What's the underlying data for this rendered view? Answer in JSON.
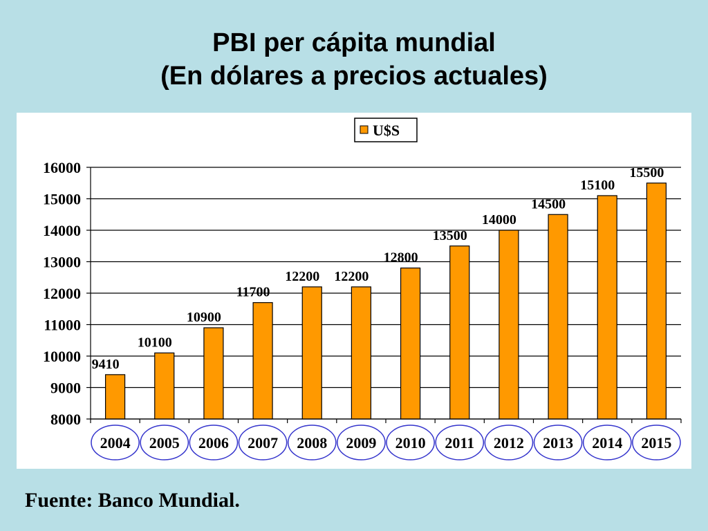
{
  "slide": {
    "title_line1": "PBI per cápita mundial",
    "title_line2": "(En dólares a precios actuales)",
    "source": "Fuente: Banco Mundial."
  },
  "colors": {
    "background": "#b8dfe6",
    "bar": "#ff9900",
    "highlight_ellipse": "#3333cc"
  },
  "chart_data": {
    "type": "bar",
    "categories": [
      "2004",
      "2005",
      "2006",
      "2007",
      "2008",
      "2009",
      "2010",
      "2011",
      "2012",
      "2013",
      "2014",
      "2015"
    ],
    "series": [
      {
        "name": "U$S",
        "values": [
          9410,
          10100,
          10900,
          11700,
          12200,
          12200,
          12800,
          13500,
          14000,
          14500,
          15100,
          15500
        ]
      }
    ],
    "data_labels": [
      "9410",
      "10100",
      "10900",
      "11700",
      "12200",
      "12200",
      "12800",
      "13500",
      "14000",
      "14500",
      "15100",
      "15500"
    ],
    "ylim": [
      8000,
      16000
    ],
    "yticks": [
      8000,
      9000,
      10000,
      11000,
      12000,
      13000,
      14000,
      15000,
      16000
    ],
    "grid": true,
    "legend_position": "top-center",
    "category_labels_circled": true
  }
}
